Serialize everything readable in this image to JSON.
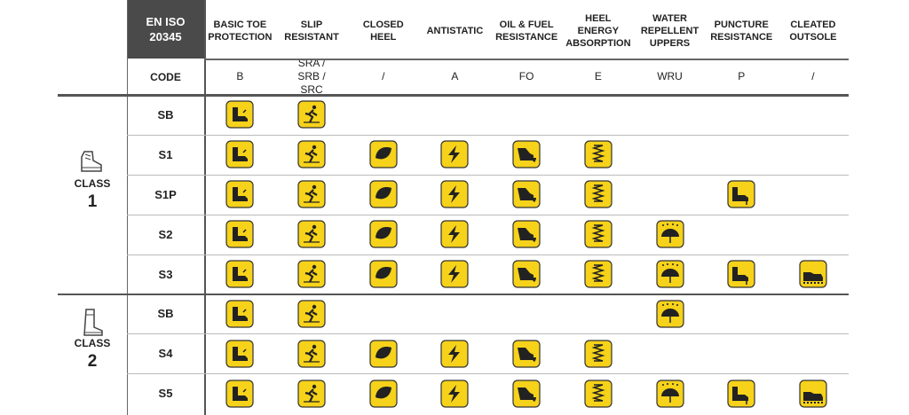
{
  "header": {
    "standard": "EN ISO 20345",
    "code_label": "CODE"
  },
  "columns": [
    {
      "name": "BASIC TOE PROTECTION",
      "code": "B"
    },
    {
      "name": "SLIP RESISTANT",
      "code": "SRA / SRB / SRC"
    },
    {
      "name": "CLOSED HEEL",
      "code": "/"
    },
    {
      "name": "ANTISTATIC",
      "code": "A"
    },
    {
      "name": "OIL & FUEL RESISTANCE",
      "code": "FO"
    },
    {
      "name": "HEEL ENERGY ABSORPTION",
      "code": "E"
    },
    {
      "name": "WATER REPELLENT UPPERS",
      "code": "WRU"
    },
    {
      "name": "PUNCTURE RESISTANCE",
      "code": "P"
    },
    {
      "name": "CLEATED OUTSOLE",
      "code": "/"
    }
  ],
  "classes": [
    {
      "label": "CLASS",
      "number": "1",
      "rows": [
        {
          "code": "SB",
          "features": [
            true,
            true,
            false,
            false,
            false,
            false,
            false,
            false,
            false
          ]
        },
        {
          "code": "S1",
          "features": [
            true,
            true,
            true,
            true,
            true,
            true,
            false,
            false,
            false
          ]
        },
        {
          "code": "S1P",
          "features": [
            true,
            true,
            true,
            true,
            true,
            true,
            false,
            true,
            false
          ]
        },
        {
          "code": "S2",
          "features": [
            true,
            true,
            true,
            true,
            true,
            true,
            true,
            false,
            false
          ]
        },
        {
          "code": "S3",
          "features": [
            true,
            true,
            true,
            true,
            true,
            true,
            true,
            true,
            true
          ]
        }
      ]
    },
    {
      "label": "CLASS",
      "number": "2",
      "rows": [
        {
          "code": "SB",
          "features": [
            true,
            true,
            false,
            false,
            false,
            false,
            true,
            false,
            false
          ]
        },
        {
          "code": "S4",
          "features": [
            true,
            true,
            true,
            true,
            true,
            true,
            false,
            false,
            false
          ]
        },
        {
          "code": "S5",
          "features": [
            true,
            true,
            true,
            true,
            true,
            true,
            true,
            true,
            true
          ]
        }
      ]
    }
  ]
}
